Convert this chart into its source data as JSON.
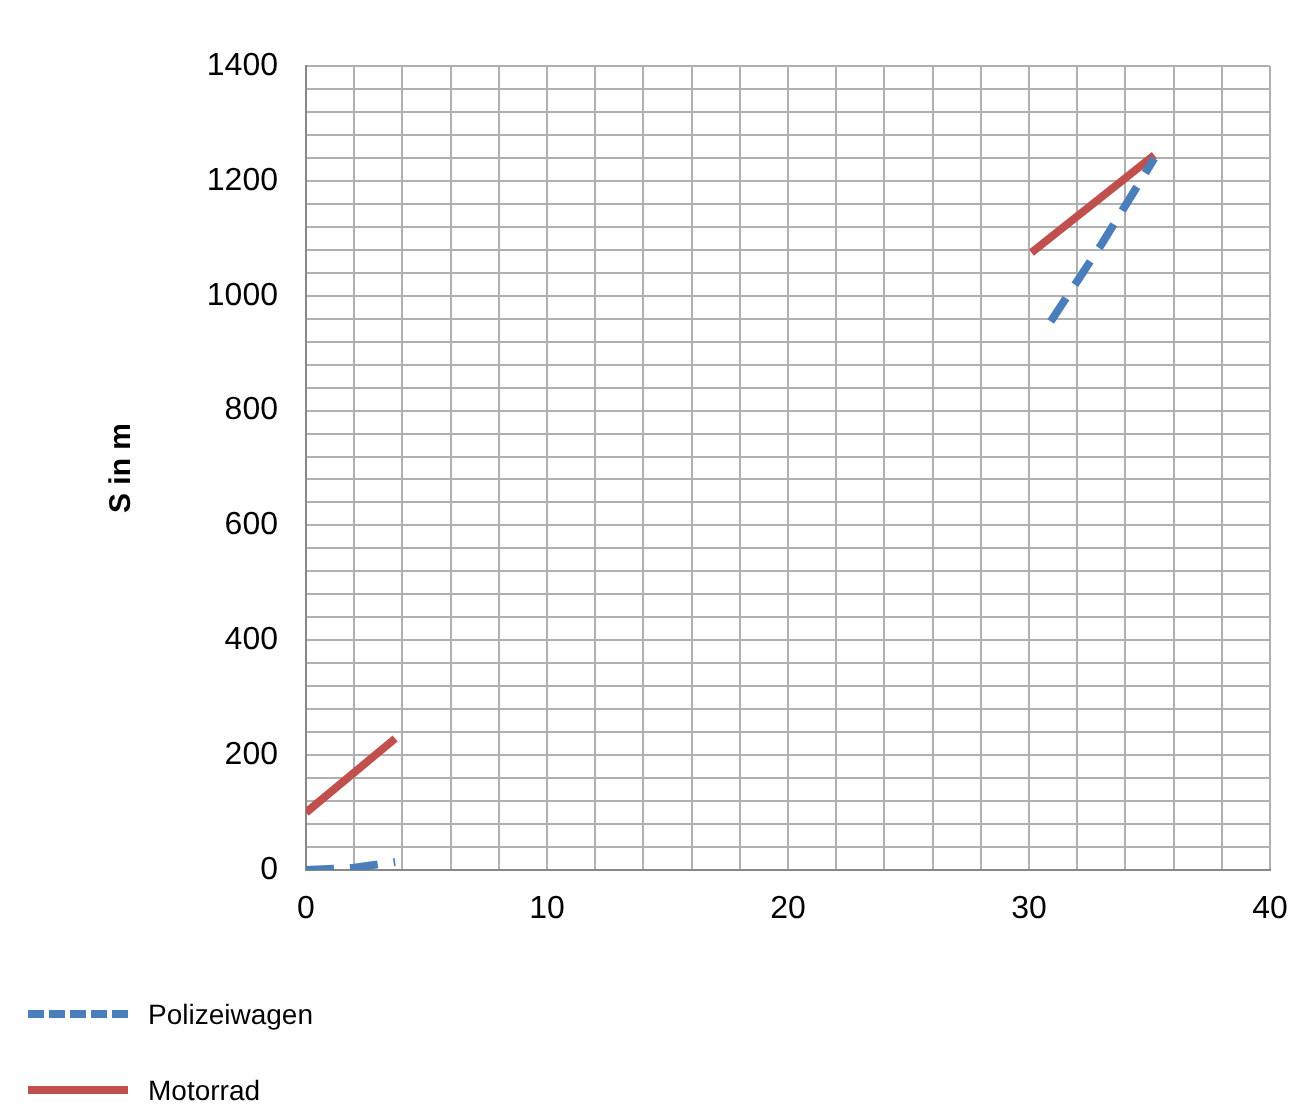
{
  "chart_data": {
    "type": "line",
    "ylabel": "S in m",
    "legend": "bottom left",
    "grid": true,
    "marker": "none",
    "xlim": [
      0,
      40
    ],
    "ylim": [
      0,
      1400
    ],
    "xticks": [
      0,
      {
        "value": 2,
        "label": null
      },
      {
        "value": 4,
        "label": null
      },
      {
        "value": 6,
        "label": null
      },
      {
        "value": 8,
        "label": null
      },
      10,
      {
        "value": 12,
        "label": null
      },
      {
        "value": 14,
        "label": null
      },
      {
        "value": 16,
        "label": null
      },
      {
        "value": 18,
        "label": null
      },
      20,
      {
        "value": 22,
        "label": null
      },
      {
        "value": 24,
        "label": null
      },
      {
        "value": 26,
        "label": null
      },
      {
        "value": 28,
        "label": null
      },
      30,
      {
        "value": 32,
        "label": null
      },
      {
        "value": 34,
        "label": null
      },
      {
        "value": 36,
        "label": null
      },
      {
        "value": 38,
        "label": null
      },
      40
    ],
    "yticks": [
      0,
      {
        "value": 40,
        "label": null
      },
      {
        "value": 80,
        "label": null
      },
      {
        "value": 120,
        "label": null
      },
      {
        "value": 160,
        "label": null
      },
      200,
      {
        "value": 240,
        "label": null
      },
      {
        "value": 280,
        "label": null
      },
      {
        "value": 320,
        "label": null
      },
      {
        "value": 360,
        "label": null
      },
      400,
      {
        "value": 440,
        "label": null
      },
      {
        "value": 480,
        "label": null
      },
      {
        "value": 520,
        "label": null
      },
      {
        "value": 560,
        "label": null
      },
      600,
      {
        "value": 640,
        "label": null
      },
      {
        "value": 680,
        "label": null
      },
      {
        "value": 720,
        "label": null
      },
      {
        "value": 760,
        "label": null
      },
      800,
      {
        "value": 840,
        "label": null
      },
      {
        "value": 880,
        "label": null
      },
      {
        "value": 920,
        "label": null
      },
      {
        "value": 960,
        "label": null
      },
      1000,
      {
        "value": 1040,
        "label": null
      },
      {
        "value": 1080,
        "label": null
      },
      {
        "value": 1120,
        "label": null
      },
      {
        "value": 1160,
        "label": null
      },
      1200,
      {
        "value": 1240,
        "label": null
      },
      {
        "value": 1280,
        "label": null
      },
      {
        "value": 1320,
        "label": null
      },
      {
        "value": 1360,
        "label": null
      },
      1400
    ],
    "series": [
      {
        "name": "Polizeiwagen",
        "color": "#4a7ebb",
        "line_style": "dashed",
        "x": [
          0,
          2,
          3.7,
          17,
          30.9,
          33,
          35.2
        ],
        "values": [
          0,
          4,
          14,
          null,
          955,
          1089,
          1239
        ]
      },
      {
        "name": "Motorrad",
        "color": "#c0504d",
        "line_style": "solid",
        "x": [
          0,
          3.7,
          17,
          30.1,
          35.2
        ],
        "values": [
          100,
          229,
          null,
          1075,
          1245
        ]
      }
    ]
  }
}
